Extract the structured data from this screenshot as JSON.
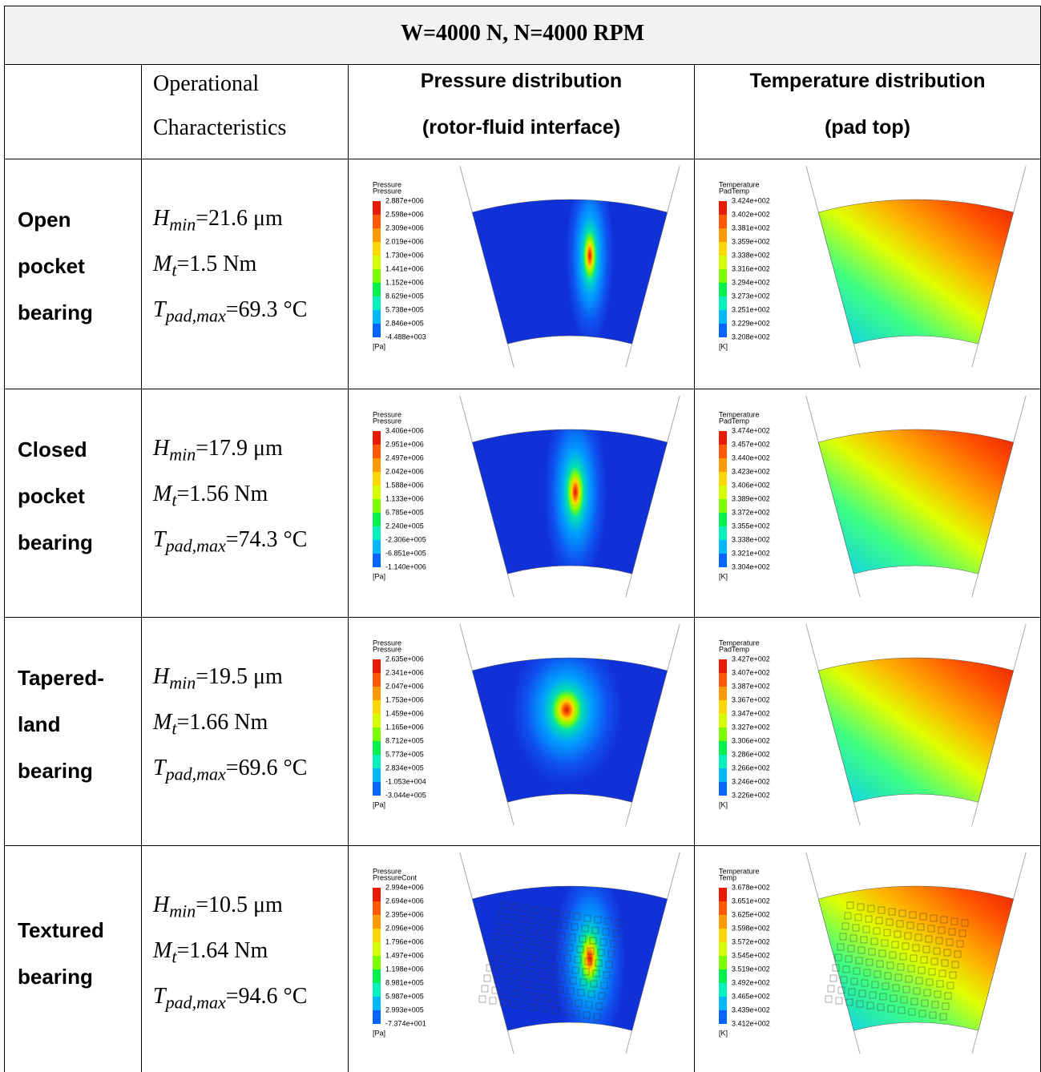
{
  "table": {
    "title": "W=4000 N, N=4000 RPM",
    "header": {
      "characteristics": [
        "Operational",
        "Characteristics"
      ],
      "pressure": [
        "Pressure distribution",
        "(rotor-fluid interface)"
      ],
      "temperature": [
        "Temperature distribution",
        "(pad top)"
      ]
    },
    "rows": [
      {
        "bearing": [
          "Open",
          "pocket",
          "bearing"
        ],
        "characteristics": [
          {
            "symbol": "H",
            "subscript": "min",
            "value": "=21.6 μm"
          },
          {
            "symbol": "M",
            "subscript": "t",
            "value": "=1.5 Nm"
          },
          {
            "symbol": "T",
            "subscript": "pad,max",
            "value": "=69.3 °C"
          }
        ],
        "pressure_plot": {
          "title": [
            "Pressure",
            "Pressure"
          ],
          "levels": [
            "2.887e+006",
            "2.598e+006",
            "2.309e+006",
            "2.019e+006",
            "1.730e+006",
            "1.441e+006",
            "1.152e+006",
            "8.629e+005",
            "5.738e+005",
            "2.846e+005",
            "-4.488e+003"
          ],
          "unit": "[Pa]"
        },
        "temperature_plot": {
          "title": [
            "Temperature",
            "PadTemp"
          ],
          "levels": [
            "3.424e+002",
            "3.402e+002",
            "3.381e+002",
            "3.359e+002",
            "3.338e+002",
            "3.316e+002",
            "3.294e+002",
            "3.273e+002",
            "3.251e+002",
            "3.229e+002",
            "3.208e+002"
          ],
          "unit": "[K]"
        }
      },
      {
        "bearing": [
          "Closed",
          "pocket",
          "bearing"
        ],
        "characteristics": [
          {
            "symbol": "H",
            "subscript": "min",
            "value": "=17.9 μm"
          },
          {
            "symbol": "M",
            "subscript": "t",
            "value": "=1.56 Nm"
          },
          {
            "symbol": "T",
            "subscript": "pad,max",
            "value": "=74.3 °C"
          }
        ],
        "pressure_plot": {
          "title": [
            "Pressure",
            "Pressure"
          ],
          "levels": [
            "3.406e+006",
            "2.951e+006",
            "2.497e+006",
            "2.042e+006",
            "1.588e+006",
            "1.133e+006",
            "6.785e+005",
            "2.240e+005",
            "-2.306e+005",
            "-6.851e+005",
            "-1.140e+006"
          ],
          "unit": "[Pa]"
        },
        "temperature_plot": {
          "title": [
            "Temperature",
            "PadTemp"
          ],
          "levels": [
            "3.474e+002",
            "3.457e+002",
            "3.440e+002",
            "3.423e+002",
            "3.406e+002",
            "3.389e+002",
            "3.372e+002",
            "3.355e+002",
            "3.338e+002",
            "3.321e+002",
            "3.304e+002"
          ],
          "unit": "[K]"
        }
      },
      {
        "bearing": [
          "Tapered-",
          "land",
          "bearing"
        ],
        "characteristics": [
          {
            "symbol": "H",
            "subscript": "min",
            "value": "=19.5 μm"
          },
          {
            "symbol": "M",
            "subscript": "t",
            "value": "=1.66 Nm"
          },
          {
            "symbol": "T",
            "subscript": "pad,max",
            "value": "=69.6 °C"
          }
        ],
        "pressure_plot": {
          "title": [
            "Pressure",
            "Pressure"
          ],
          "levels": [
            "2.635e+006",
            "2.341e+006",
            "2.047e+006",
            "1.753e+006",
            "1.459e+006",
            "1.165e+006",
            "8.712e+005",
            "5.773e+005",
            "2.834e+005",
            "-1.053e+004",
            "-3.044e+005"
          ],
          "unit": "[Pa]"
        },
        "temperature_plot": {
          "title": [
            "Temperature",
            "PadTemp"
          ],
          "levels": [
            "3.427e+002",
            "3.407e+002",
            "3.387e+002",
            "3.367e+002",
            "3.347e+002",
            "3.327e+002",
            "3.306e+002",
            "3.286e+002",
            "3.266e+002",
            "3.246e+002",
            "3.226e+002"
          ],
          "unit": "[K]"
        }
      },
      {
        "bearing": [
          "Textured",
          "bearing"
        ],
        "characteristics": [
          {
            "symbol": "H",
            "subscript": "min",
            "value": "=10.5 μm"
          },
          {
            "symbol": "M",
            "subscript": "t",
            "value": "=1.64 Nm"
          },
          {
            "symbol": "T",
            "subscript": "pad,max",
            "value": "=94.6 °C"
          }
        ],
        "pressure_plot": {
          "title": [
            "Pressure",
            "PressureCont"
          ],
          "levels": [
            "2.994e+006",
            "2.694e+006",
            "2.395e+006",
            "2.096e+006",
            "1.796e+006",
            "1.497e+006",
            "1.198e+006",
            "8.981e+005",
            "5.987e+005",
            "2.993e+005",
            "-7.374e+001"
          ],
          "unit": "[Pa]"
        },
        "temperature_plot": {
          "title": [
            "Temperature",
            "Temp"
          ],
          "levels": [
            "3.678e+002",
            "3.651e+002",
            "3.625e+002",
            "3.598e+002",
            "3.572e+002",
            "3.545e+002",
            "3.519e+002",
            "3.492e+002",
            "3.465e+002",
            "3.439e+002",
            "3.412e+002"
          ],
          "unit": "[K]"
        }
      }
    ]
  }
}
